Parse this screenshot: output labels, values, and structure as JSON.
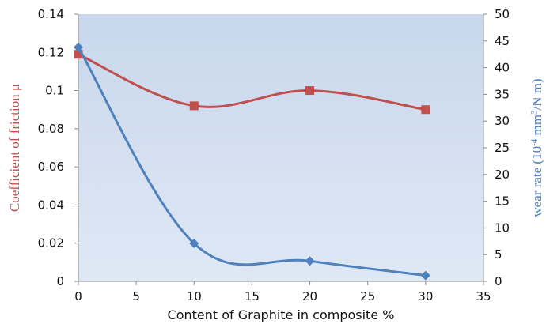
{
  "chart_data": {
    "type": "line",
    "xlabel": "Content of Graphite in composite %",
    "ylabel_left": "Coefficient of friction μ",
    "ylabel_right_parts": [
      "wear rate (10",
      "-4",
      " mm",
      "3",
      "/N m)"
    ],
    "x_ticks": [
      "0",
      "5",
      "10",
      "15",
      "20",
      "25",
      "30",
      "35"
    ],
    "y_left_ticks": [
      "0",
      "0.02",
      "0.04",
      "0.06",
      "0.08",
      "0.1",
      "0.12",
      "0.14"
    ],
    "y_right_ticks": [
      "0",
      "5",
      "10",
      "15",
      "20",
      "25",
      "30",
      "35",
      "40",
      "45",
      "50"
    ],
    "xlim": [
      0,
      35
    ],
    "ylim_left": [
      0,
      0.14
    ],
    "ylim_right": [
      0,
      50
    ],
    "series": [
      {
        "axis": "left",
        "x": [
          0,
          10,
          20,
          30
        ],
        "values": [
          0.119,
          0.092,
          0.1,
          0.09
        ],
        "color": "#c0504d",
        "marker": "square",
        "smooth": true
      },
      {
        "axis": "right",
        "x": [
          0,
          10,
          20,
          30
        ],
        "values": [
          43.8,
          7.1,
          3.8,
          1.1
        ],
        "color": "#4f81bd",
        "marker": "diamond",
        "smooth": true
      }
    ],
    "grid": false,
    "colors": {
      "left_axis_label": "#c0504d",
      "right_axis_label": "#4f81bd",
      "plot_gradient_top": "#c8d7ec",
      "plot_gradient_bottom": "#dfe8f5"
    }
  }
}
